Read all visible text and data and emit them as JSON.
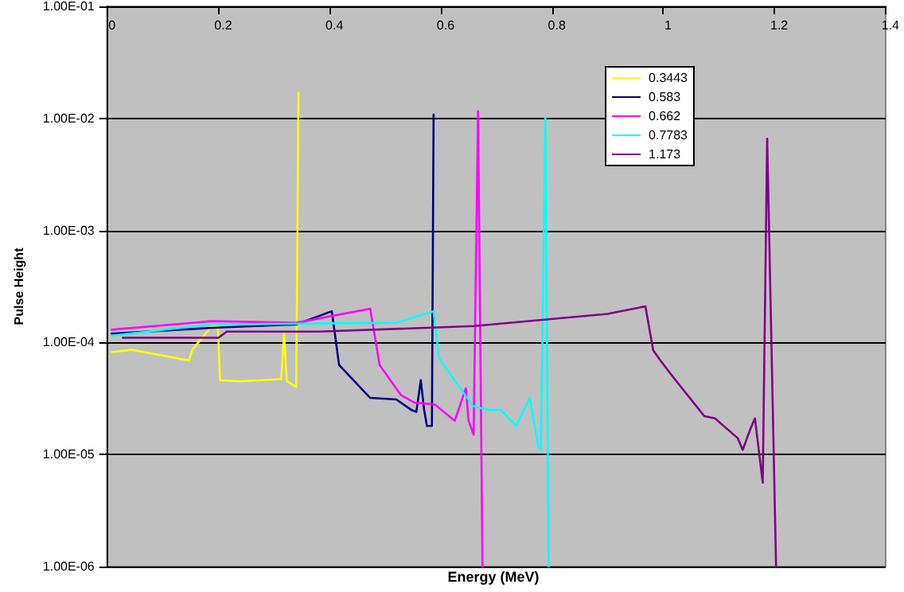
{
  "chart_data": {
    "type": "line",
    "xlabel": "Energy (MeV)",
    "ylabel": "Pulse Height",
    "log": "y",
    "grid": "y",
    "legend": "top right",
    "marker": "none",
    "line_style": "solid",
    "xlim": [
      0,
      1.4
    ],
    "xticks": [
      0,
      0.2,
      0.4,
      0.6,
      0.8,
      1,
      1.2,
      1.4
    ],
    "ylim": [
      1e-06,
      0.1
    ],
    "yticks": [
      {
        "value": 1e-06,
        "label": "1.00E-06"
      },
      {
        "value": 1e-05,
        "label": "1.00E-05"
      },
      {
        "value": 0.0001,
        "label": "1.00E-04"
      },
      {
        "value": 0.001,
        "label": "1.00E-03"
      },
      {
        "value": 0.01,
        "label": "1.00E-02"
      },
      {
        "value": 0.1,
        "label": "1.00E-01"
      }
    ],
    "series": [
      {
        "name": "0.3443",
        "color": "#ffff00",
        "x": [
          0.008,
          0.044,
          0.147,
          0.153,
          0.188,
          0.199,
          0.203,
          0.238,
          0.313,
          0.318,
          0.323,
          0.34,
          0.344
        ],
        "values": [
          8.2e-05,
          8.6e-05,
          6.9e-05,
          8.6e-05,
          0.00014,
          0.00014,
          4.6e-05,
          4.5e-05,
          4.7e-05,
          0.00012,
          4.5e-05,
          4e-05,
          0.017
        ]
      },
      {
        "name": "0.583",
        "color": "#000080",
        "x": [
          0.008,
          0.188,
          0.34,
          0.404,
          0.417,
          0.473,
          0.52,
          0.547,
          0.556,
          0.564,
          0.57,
          0.575,
          0.584,
          0.587
        ],
        "values": [
          0.00012,
          0.000135,
          0.000145,
          0.00019,
          6.3e-05,
          3.2e-05,
          3.1e-05,
          2.5e-05,
          2.4e-05,
          4.6e-05,
          2.5e-05,
          1.8e-05,
          1.8e-05,
          0.0108
        ]
      },
      {
        "name": "0.662",
        "color": "#ff00ff",
        "x": [
          0.008,
          0.188,
          0.34,
          0.473,
          0.49,
          0.528,
          0.553,
          0.589,
          0.625,
          0.645,
          0.65,
          0.659,
          0.667,
          0.675
        ],
        "values": [
          0.00013,
          0.000155,
          0.00015,
          0.0002,
          6.3e-05,
          3.4e-05,
          2.9e-05,
          2.8e-05,
          2e-05,
          3.9e-05,
          2e-05,
          1.5e-05,
          0.0116,
          1e-06
        ]
      },
      {
        "name": "0.7783",
        "color": "#00ffff",
        "x": [
          0.008,
          0.188,
          0.52,
          0.587,
          0.597,
          0.658,
          0.686,
          0.708,
          0.736,
          0.76,
          0.775,
          0.78,
          0.788,
          0.794
        ],
        "values": [
          0.000115,
          0.000145,
          0.00015,
          0.00019,
          7.2e-05,
          2.7e-05,
          2.5e-05,
          2.5e-05,
          1.8e-05,
          3.2e-05,
          1.2e-05,
          1.1e-05,
          0.01,
          1e-06
        ]
      },
      {
        "name": "1.173",
        "color": "#800080",
        "x": [
          0.028,
          0.2,
          0.215,
          0.38,
          0.66,
          0.9,
          0.968,
          0.982,
          0.996,
          1.018,
          1.074,
          1.093,
          1.134,
          1.143,
          1.157,
          1.165,
          1.179,
          1.187,
          1.203
        ],
        "values": [
          0.00011,
          0.00011,
          0.000125,
          0.000125,
          0.00014,
          0.00018,
          0.00021,
          8.5e-05,
          6.8e-05,
          4.9e-05,
          2.2e-05,
          2.1e-05,
          1.4e-05,
          1.1e-05,
          1.7e-05,
          2.1e-05,
          5.6e-06,
          0.0066,
          1e-06
        ]
      }
    ]
  }
}
